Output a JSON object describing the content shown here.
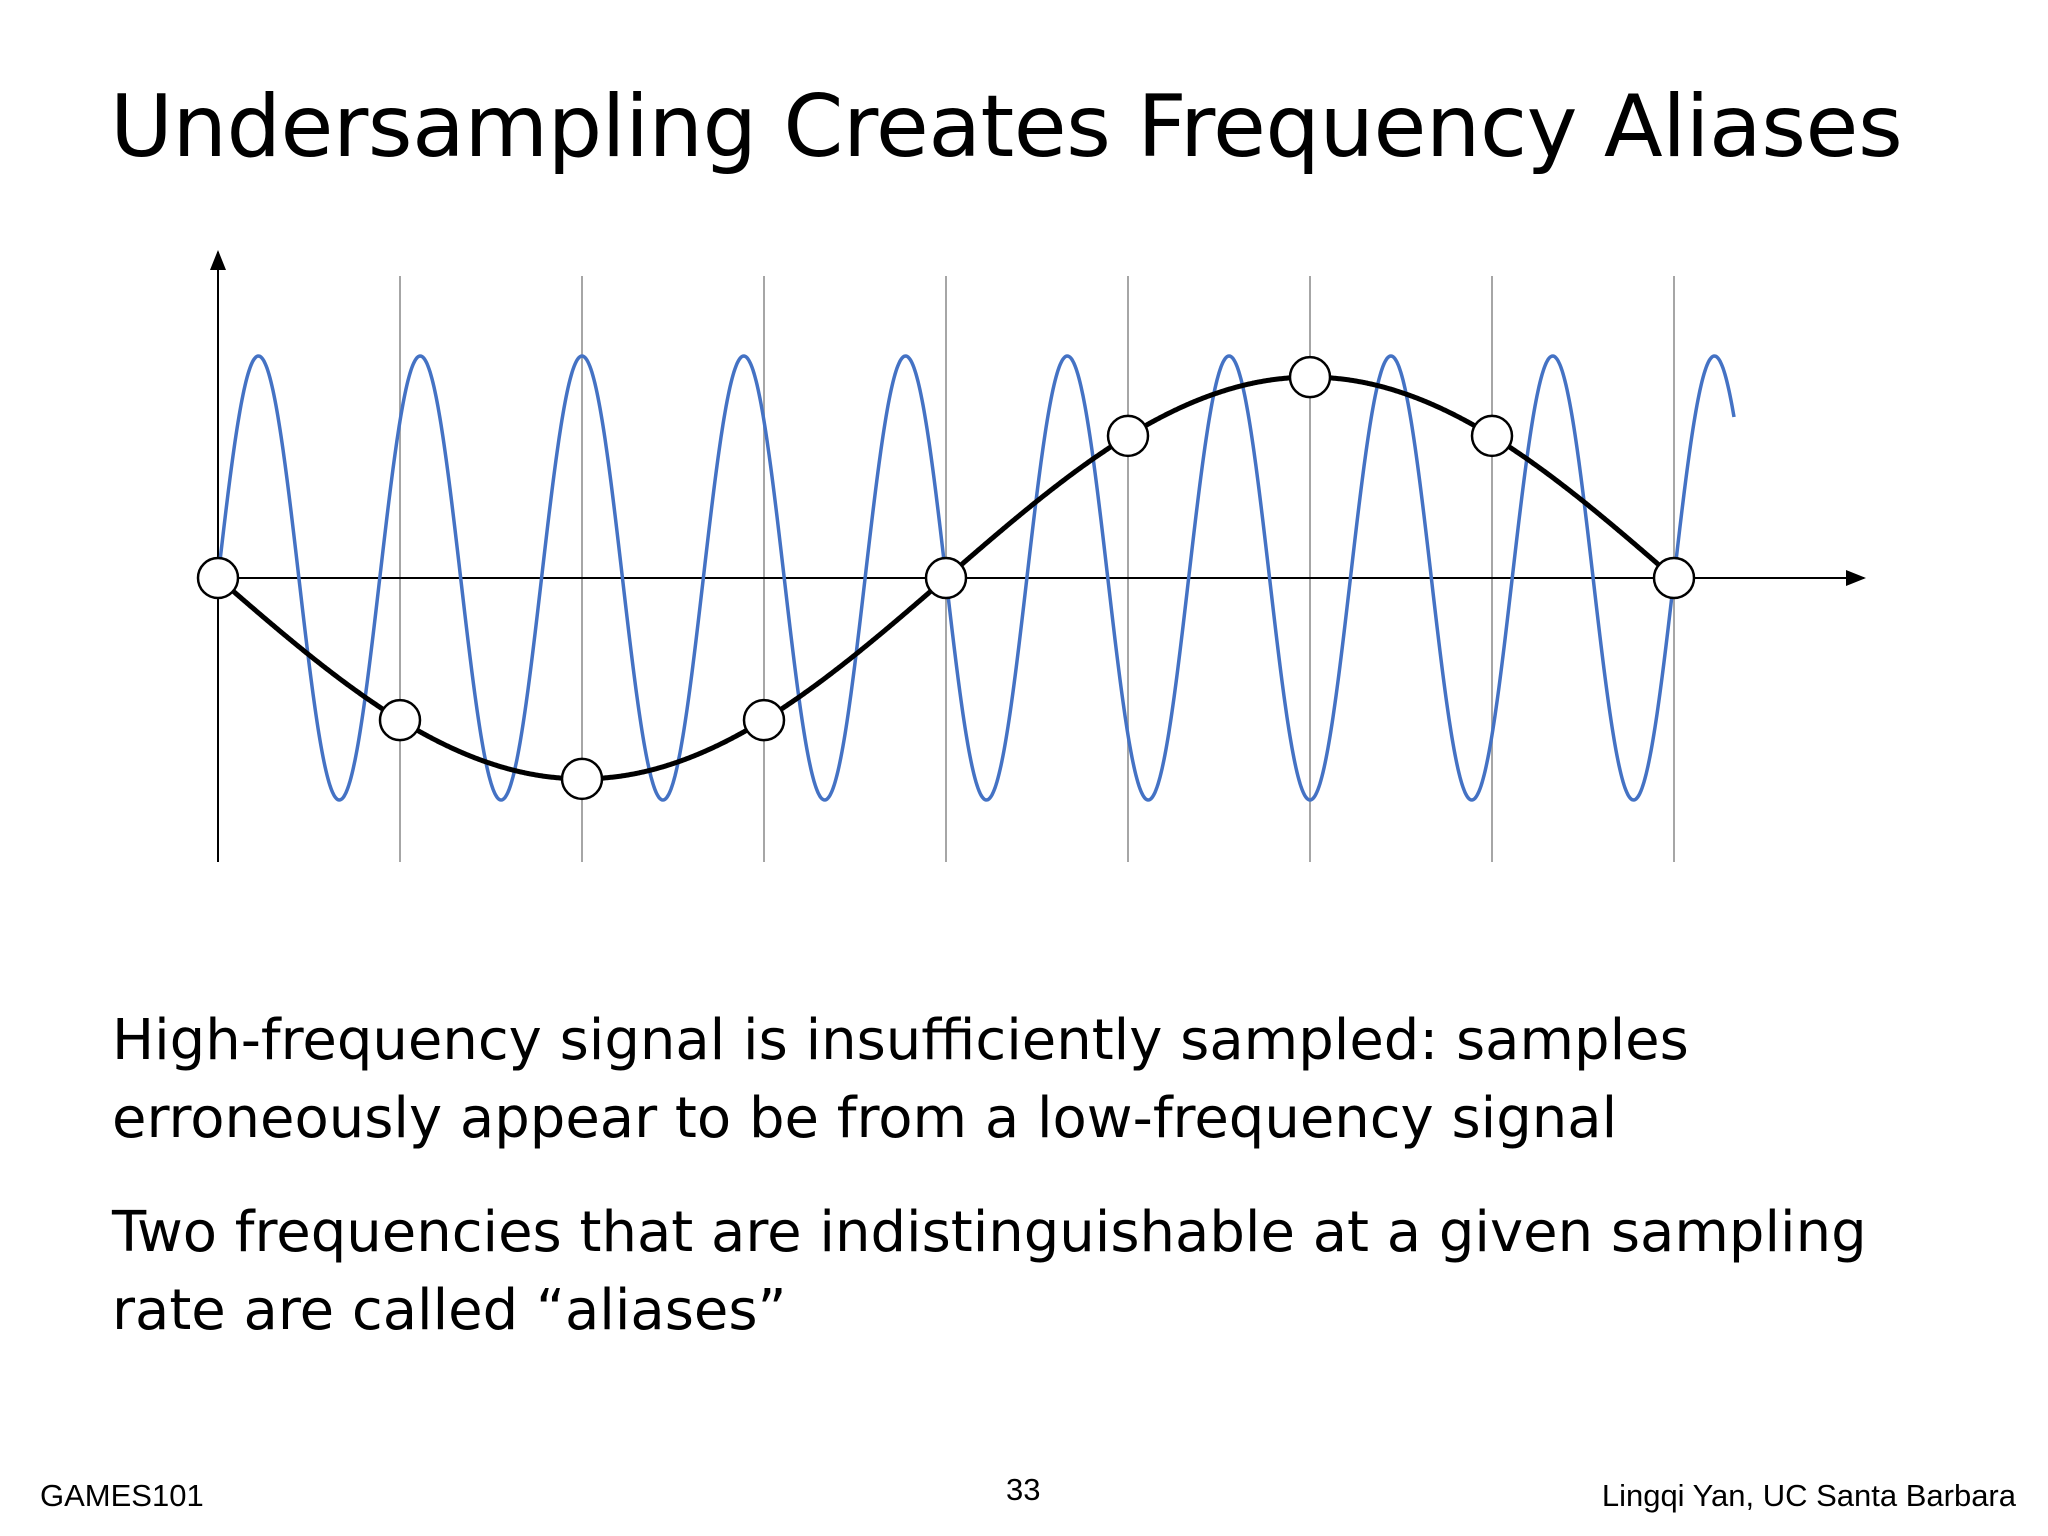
{
  "slide": {
    "title": "Undersampling Creates Frequency Aliases",
    "bullets": [
      "High-frequency signal is insufficiently sampled: samples\nerroneously appear to be from a low-frequency signal",
      "Two frequencies that are indistinguishable at a given sampling\nrate are called “aliases”"
    ]
  },
  "footer": {
    "course": "GAMES101",
    "page_number": "33",
    "author": "Lingqi Yan, UC Santa Barbara"
  },
  "diagram": {
    "high_frequency_color": "#4472c4",
    "alias_color": "#000000",
    "sample_line_color": "#a6a6a6",
    "axis_color": "#000000",
    "sample_count": 9,
    "high_frequency_cycles_per_sample": 1.125,
    "alias_cycles_per_sample": -0.125
  }
}
